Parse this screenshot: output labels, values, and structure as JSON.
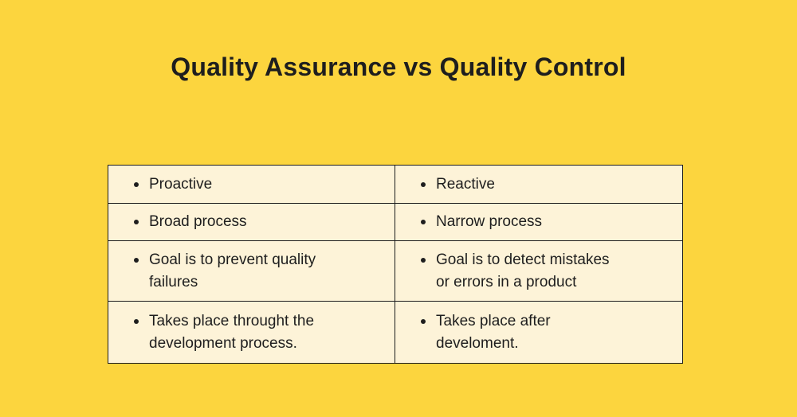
{
  "page": {
    "background_color": "#FCD53E",
    "title": "Quality Assurance vs Quality Control",
    "title_color": "#1E1E1E"
  },
  "table": {
    "cell_background": "#FDF3D8",
    "border_color": "#1C1C1C",
    "bullet_color": "#1E1E1E",
    "left_column_topic": "Quality Assurance",
    "right_column_topic": "Quality Control",
    "rows": [
      {
        "left": "Proactive",
        "right": "Reactive"
      },
      {
        "left": "Broad process",
        "right": "Narrow process"
      },
      {
        "left": "Goal is to prevent quality\nfailures",
        "right": "Goal is to detect mistakes\nor errors in a product"
      },
      {
        "left": "Takes place throught the\ndevelopment process.",
        "right": "Takes place after\ndevelome nt."
      }
    ]
  }
}
